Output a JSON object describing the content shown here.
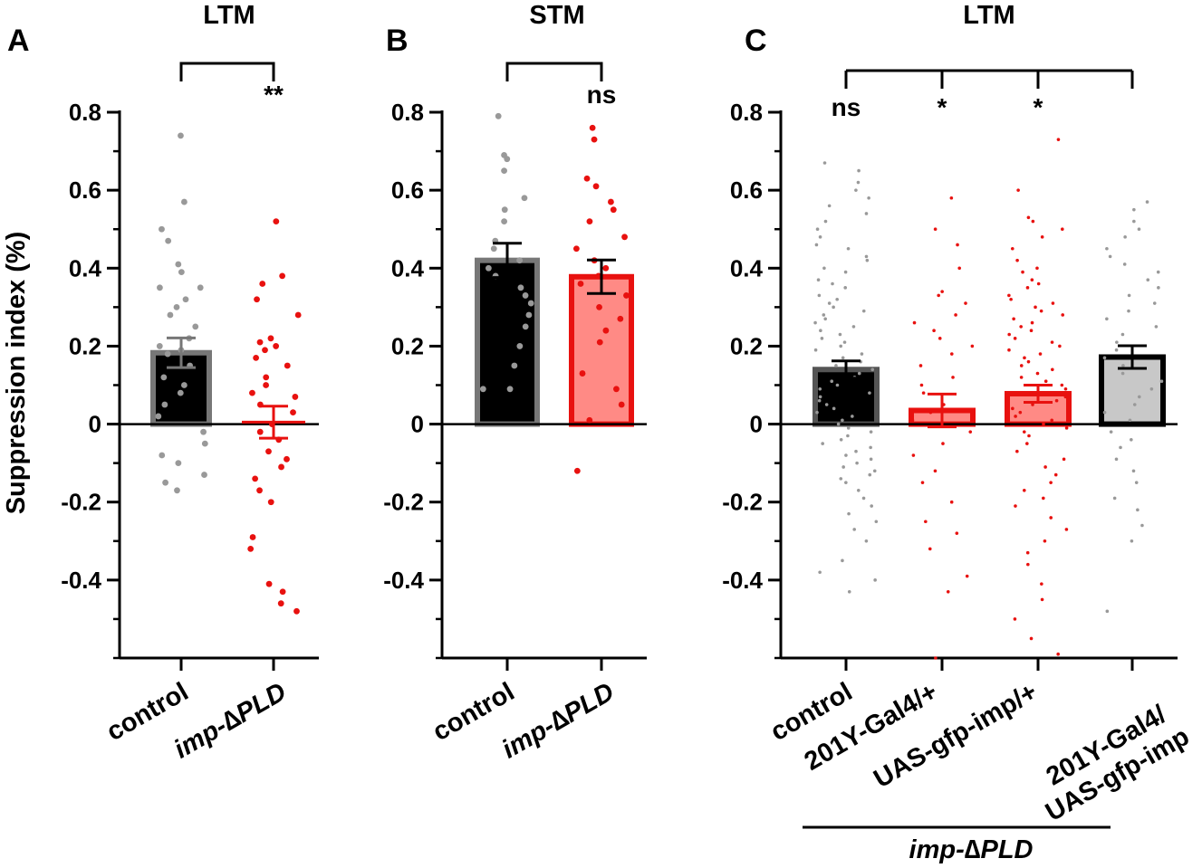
{
  "figure": {
    "ylabel": "Suppression index (%)",
    "group_label": "imp-∆PLD",
    "colors": {
      "black": "#000000",
      "grey_dot": "#999999",
      "dark_grey_outline": "#777777",
      "red": "#e8110f",
      "salmon": "#ff8a85",
      "light_grey": "#c8c8c8"
    }
  },
  "chart_data": [
    {
      "id": "A",
      "panel_letter": "A",
      "type": "bar",
      "title": "LTM",
      "ylabel": "Suppression index (%)",
      "ylim": [
        -0.6,
        0.8
      ],
      "yticks": [
        -0.4,
        -0.2,
        0,
        0.2,
        0.4,
        0.6,
        0.8
      ],
      "ytick_labels": [
        "-0.4",
        "-0.2",
        "0",
        "0.2",
        "0.4",
        "0.6",
        "0.8"
      ],
      "categories": [
        "control",
        "imp-∆PLD"
      ],
      "values": [
        0.183,
        0.005
      ],
      "sem": [
        0.038,
        0.041
      ],
      "significance": [
        {
          "from": 0,
          "to": 1,
          "label": "**"
        }
      ],
      "points": [
        [
          0.74,
          0.57,
          0.5,
          0.47,
          0.41,
          0.39,
          0.35,
          0.35,
          0.32,
          0.3,
          0.28,
          0.25,
          0.22,
          0.2,
          0.19,
          0.18,
          0.15,
          0.12,
          0.1,
          0.08,
          0.05,
          0.02,
          -0.02,
          -0.05,
          -0.08,
          -0.1,
          -0.13,
          -0.15,
          -0.17
        ],
        [
          0.52,
          0.38,
          0.36,
          0.32,
          0.28,
          0.22,
          0.21,
          0.2,
          0.19,
          0.17,
          0.15,
          0.12,
          0.1,
          0.08,
          0.07,
          0.05,
          0.03,
          0.0,
          -0.02,
          -0.04,
          -0.07,
          -0.09,
          -0.11,
          -0.14,
          -0.17,
          -0.2,
          -0.29,
          -0.32,
          -0.41,
          -0.43,
          -0.46,
          -0.48
        ]
      ]
    },
    {
      "id": "B",
      "panel_letter": "B",
      "type": "bar",
      "title": "STM",
      "ylim": [
        -0.6,
        0.8
      ],
      "yticks": [
        -0.4,
        -0.2,
        0,
        0.2,
        0.4,
        0.6,
        0.8
      ],
      "ytick_labels": [
        "-0.4",
        "-0.2",
        "0",
        "0.2",
        "0.4",
        "0.6",
        "0.8"
      ],
      "categories": [
        "control",
        "imp-∆PLD"
      ],
      "values": [
        0.42,
        0.378
      ],
      "sem": [
        0.044,
        0.043
      ],
      "significance": [
        {
          "from": 0,
          "to": 1,
          "label": "ns"
        }
      ],
      "points": [
        [
          0.79,
          0.69,
          0.68,
          0.65,
          0.58,
          0.55,
          0.52,
          0.47,
          0.45,
          0.42,
          0.4,
          0.38,
          0.35,
          0.33,
          0.31,
          0.28,
          0.25,
          0.2,
          0.15,
          0.09,
          0.09
        ],
        [
          0.76,
          0.73,
          0.63,
          0.61,
          0.57,
          0.55,
          0.52,
          0.48,
          0.45,
          0.42,
          0.4,
          0.38,
          0.36,
          0.33,
          0.3,
          0.27,
          0.24,
          0.21,
          0.13,
          0.09,
          0.05,
          0.01,
          -0.12
        ]
      ]
    },
    {
      "id": "C",
      "panel_letter": "C",
      "type": "bar",
      "title": "LTM",
      "ylim": [
        -0.6,
        0.8
      ],
      "yticks": [
        -0.4,
        -0.2,
        0,
        0.2,
        0.4,
        0.6,
        0.8
      ],
      "ytick_labels": [
        "-0.4",
        "-0.2",
        "0",
        "0.2",
        "0.4",
        "0.6",
        "0.8"
      ],
      "categories": [
        "control",
        "201Y-Gal4/+",
        "UAS-gfp-imp/+",
        "201Y-Gal4/\nUAS-gfp-imp"
      ],
      "values": [
        0.14,
        0.035,
        0.078,
        0.172
      ],
      "sem": [
        0.022,
        0.042,
        0.022,
        0.029
      ],
      "significance_labels": [
        "ns",
        "*",
        "*"
      ],
      "group_bracket_label": "imp-∆PLD",
      "points": [
        [
          0.67,
          0.65,
          0.62,
          0.6,
          0.58,
          0.56,
          0.54,
          0.52,
          0.5,
          0.48,
          0.46,
          0.45,
          0.43,
          0.42,
          0.4,
          0.39,
          0.37,
          0.36,
          0.35,
          0.33,
          0.32,
          0.31,
          0.3,
          0.29,
          0.28,
          0.27,
          0.26,
          0.25,
          0.24,
          0.23,
          0.22,
          0.21,
          0.2,
          0.19,
          0.18,
          0.17,
          0.16,
          0.15,
          0.14,
          0.13,
          0.12,
          0.11,
          0.1,
          0.09,
          0.08,
          0.07,
          0.06,
          0.05,
          0.04,
          0.03,
          0.02,
          0.01,
          0.0,
          -0.01,
          -0.02,
          -0.03,
          -0.04,
          -0.05,
          -0.06,
          -0.07,
          -0.08,
          -0.09,
          -0.1,
          -0.11,
          -0.12,
          -0.13,
          -0.14,
          -0.15,
          -0.17,
          -0.19,
          -0.21,
          -0.23,
          -0.25,
          -0.27,
          -0.3,
          -0.35,
          -0.38,
          -0.4,
          -0.43
        ],
        [
          0.58,
          0.5,
          0.46,
          0.4,
          0.34,
          0.33,
          0.31,
          0.28,
          0.26,
          0.24,
          0.22,
          0.2,
          0.18,
          0.15,
          0.12,
          0.1,
          0.08,
          0.05,
          0.03,
          0.01,
          -0.02,
          -0.05,
          -0.08,
          -0.12,
          -0.15,
          -0.2,
          -0.25,
          -0.28,
          -0.32,
          -0.39,
          -0.43,
          -0.6
        ],
        [
          0.73,
          0.6,
          0.53,
          0.52,
          0.5,
          0.48,
          0.45,
          0.42,
          0.4,
          0.39,
          0.37,
          0.36,
          0.35,
          0.33,
          0.32,
          0.31,
          0.3,
          0.29,
          0.28,
          0.27,
          0.26,
          0.25,
          0.24,
          0.23,
          0.22,
          0.21,
          0.2,
          0.19,
          0.18,
          0.17,
          0.16,
          0.15,
          0.14,
          0.13,
          0.12,
          0.11,
          0.1,
          0.09,
          0.08,
          0.07,
          0.06,
          0.05,
          0.04,
          0.03,
          0.02,
          0.01,
          0.0,
          -0.01,
          -0.02,
          -0.03,
          -0.05,
          -0.07,
          -0.09,
          -0.11,
          -0.13,
          -0.15,
          -0.17,
          -0.19,
          -0.21,
          -0.24,
          -0.27,
          -0.3,
          -0.33,
          -0.36,
          -0.41,
          -0.45,
          -0.5,
          -0.55,
          -0.59
        ],
        [
          0.57,
          0.55,
          0.52,
          0.5,
          0.48,
          0.45,
          0.43,
          0.41,
          0.39,
          0.37,
          0.35,
          0.33,
          0.31,
          0.29,
          0.27,
          0.25,
          0.23,
          0.21,
          0.19,
          0.17,
          0.15,
          0.13,
          0.11,
          0.09,
          0.07,
          0.05,
          0.03,
          0.01,
          -0.02,
          -0.04,
          -0.06,
          -0.09,
          -0.12,
          -0.15,
          -0.19,
          -0.22,
          -0.26,
          -0.3,
          -0.48
        ]
      ]
    }
  ]
}
